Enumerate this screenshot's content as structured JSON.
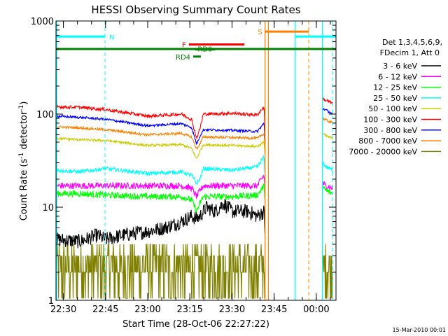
{
  "chart_data": {
    "type": "line",
    "title": "HESSI Observing Summary Count Rates",
    "xlabel": "Start Time (28-Oct-06 22:27:22)",
    "ylabel_main": "Count Rate (s",
    "ylabel_sup": "-1",
    "ylabel_mid": " detector",
    "ylabel_end": ")",
    "yscale": "log",
    "ylim": [
      1,
      1000
    ],
    "xlim": [
      22.4561,
      24.1167
    ],
    "y_ticks": [
      {
        "v": 1,
        "label": "1"
      },
      {
        "v": 10,
        "label": "10"
      },
      {
        "v": 100,
        "label": "100"
      },
      {
        "v": 1000,
        "label": "1000"
      }
    ],
    "x_ticks": [
      {
        "v": 22.5,
        "label": "22:30"
      },
      {
        "v": 22.75,
        "label": "22:45"
      },
      {
        "v": 23.0,
        "label": "23:00"
      },
      {
        "v": 23.25,
        "label": "23:15"
      },
      {
        "v": 23.5,
        "label": "23:30"
      },
      {
        "v": 23.75,
        "label": "23:45"
      },
      {
        "v": 24.0,
        "label": "00:00"
      }
    ],
    "legend": {
      "placement": "right",
      "header1": "Det 1,3,4,5,6,9,",
      "header2": "FDecim 1, Att 0",
      "entries": [
        {
          "label": "3 - 6 keV",
          "color": "#000000"
        },
        {
          "label": "6 - 12 keV",
          "color": "#ff00ff"
        },
        {
          "label": "12 - 25 keV",
          "color": "#00ff00"
        },
        {
          "label": "25 - 50 keV",
          "color": "#00ffff"
        },
        {
          "label": "50 - 100 keV",
          "color": "#cccc00"
        },
        {
          "label": "100 - 300 keV",
          "color": "#ff0000"
        },
        {
          "label": "300 - 800 keV",
          "color": "#0000ff"
        },
        {
          "label": "800 - 7000 keV",
          "color": "#ff8000"
        },
        {
          "label": "7000 - 20000 keV",
          "color": "#808000"
        }
      ]
    },
    "segments": [
      [
        22.4561,
        23.696
      ],
      [
        24.0375,
        24.096
      ]
    ],
    "series": [
      {
        "name": "100 - 300 keV",
        "color": "#ff0000",
        "noise": 0.04,
        "points": [
          [
            22.4561,
            120
          ],
          [
            22.6,
            118
          ],
          [
            22.75,
            112
          ],
          [
            23.0,
            95
          ],
          [
            23.2,
            100
          ],
          [
            23.26,
            88
          ],
          [
            23.29,
            55
          ],
          [
            23.31,
            70
          ],
          [
            23.33,
            100
          ],
          [
            23.5,
            102
          ],
          [
            23.65,
            98
          ],
          [
            23.69,
            120
          ],
          [
            23.696,
            60
          ],
          [
            24.0375,
            145
          ],
          [
            24.06,
            140
          ],
          [
            24.096,
            130
          ]
        ]
      },
      {
        "name": "300 - 800 keV",
        "color": "#0000ff",
        "noise": 0.03,
        "points": [
          [
            22.4561,
            95
          ],
          [
            22.6,
            92
          ],
          [
            22.75,
            88
          ],
          [
            23.0,
            75
          ],
          [
            23.2,
            79
          ],
          [
            23.26,
            72
          ],
          [
            23.29,
            48
          ],
          [
            23.31,
            58
          ],
          [
            23.33,
            68
          ],
          [
            23.5,
            67
          ],
          [
            23.65,
            65
          ],
          [
            23.69,
            80
          ],
          [
            23.696,
            50
          ],
          [
            24.0375,
            115
          ],
          [
            24.06,
            110
          ],
          [
            24.096,
            100
          ]
        ]
      },
      {
        "name": "800 - 7000 keV",
        "color": "#ff8000",
        "noise": 0.03,
        "points": [
          [
            22.4561,
            73
          ],
          [
            22.6,
            71
          ],
          [
            22.75,
            68
          ],
          [
            23.0,
            60
          ],
          [
            23.2,
            62
          ],
          [
            23.26,
            57
          ],
          [
            23.29,
            42
          ],
          [
            23.31,
            48
          ],
          [
            23.33,
            57
          ],
          [
            23.5,
            56
          ],
          [
            23.65,
            55
          ],
          [
            23.69,
            62
          ],
          [
            23.696,
            40
          ],
          [
            24.0375,
            90
          ],
          [
            24.06,
            86
          ],
          [
            24.096,
            80
          ]
        ]
      },
      {
        "name": "50 - 100 keV",
        "color": "#cccc00",
        "noise": 0.03,
        "points": [
          [
            22.4561,
            55
          ],
          [
            22.6,
            53
          ],
          [
            22.75,
            52
          ],
          [
            23.0,
            46
          ],
          [
            23.2,
            47
          ],
          [
            23.26,
            43
          ],
          [
            23.29,
            33
          ],
          [
            23.31,
            40
          ],
          [
            23.33,
            47
          ],
          [
            23.5,
            46
          ],
          [
            23.65,
            45
          ],
          [
            23.69,
            50
          ],
          [
            23.696,
            35
          ],
          [
            24.0375,
            62
          ],
          [
            24.06,
            58
          ],
          [
            24.096,
            55
          ]
        ]
      },
      {
        "name": "25 - 50 keV",
        "color": "#00ffff",
        "noise": 0.05,
        "points": [
          [
            22.4561,
            25
          ],
          [
            22.6,
            24
          ],
          [
            22.75,
            26
          ],
          [
            23.0,
            23
          ],
          [
            23.2,
            24
          ],
          [
            23.26,
            22
          ],
          [
            23.29,
            18
          ],
          [
            23.31,
            20
          ],
          [
            23.33,
            26
          ],
          [
            23.5,
            25
          ],
          [
            23.65,
            27
          ],
          [
            23.69,
            35
          ],
          [
            23.696,
            20
          ],
          [
            24.0375,
            30
          ],
          [
            24.06,
            27
          ],
          [
            24.096,
            25
          ]
        ]
      },
      {
        "name": "6 - 12 keV",
        "color": "#ff00ff",
        "noise": 0.08,
        "points": [
          [
            22.4561,
            17
          ],
          [
            22.6,
            17
          ],
          [
            22.75,
            17
          ],
          [
            23.0,
            17
          ],
          [
            23.2,
            17
          ],
          [
            23.26,
            16
          ],
          [
            23.29,
            13
          ],
          [
            23.31,
            15
          ],
          [
            23.33,
            17
          ],
          [
            23.5,
            17
          ],
          [
            23.65,
            17
          ],
          [
            23.69,
            22
          ],
          [
            23.696,
            15
          ],
          [
            24.0375,
            18
          ],
          [
            24.06,
            17
          ],
          [
            24.096,
            16
          ]
        ]
      },
      {
        "name": "12 - 25 keV",
        "color": "#00ff00",
        "noise": 0.08,
        "points": [
          [
            22.4561,
            14
          ],
          [
            22.6,
            14
          ],
          [
            22.75,
            13.5
          ],
          [
            23.0,
            13
          ],
          [
            23.2,
            13
          ],
          [
            23.26,
            12
          ],
          [
            23.29,
            9
          ],
          [
            23.31,
            11
          ],
          [
            23.33,
            13
          ],
          [
            23.5,
            13
          ],
          [
            23.65,
            13.5
          ],
          [
            23.69,
            17
          ],
          [
            23.696,
            12
          ],
          [
            24.0375,
            16
          ],
          [
            24.06,
            15
          ],
          [
            24.096,
            14
          ]
        ]
      },
      {
        "name": "3 - 6 keV",
        "color": "#000000",
        "noise": 0.18,
        "points": [
          [
            22.4561,
            4.5
          ],
          [
            22.6,
            4.3
          ],
          [
            22.7,
            5
          ],
          [
            22.75,
            4.5
          ],
          [
            22.85,
            5
          ],
          [
            23.0,
            5.5
          ],
          [
            23.1,
            6
          ],
          [
            23.2,
            7
          ],
          [
            23.26,
            8
          ],
          [
            23.29,
            7.5
          ],
          [
            23.31,
            8
          ],
          [
            23.35,
            10
          ],
          [
            23.4,
            9
          ],
          [
            23.45,
            11
          ],
          [
            23.5,
            9
          ],
          [
            23.55,
            9
          ],
          [
            23.6,
            9
          ],
          [
            23.65,
            8
          ],
          [
            23.69,
            9
          ],
          [
            23.696,
            5
          ]
        ]
      },
      {
        "name": "7000 - 20000 keV",
        "color": "#808000",
        "noise": 0.35,
        "points": [
          [
            22.4561,
            2.8
          ],
          [
            22.6,
            2.8
          ],
          [
            22.75,
            3
          ],
          [
            22.9,
            2.6
          ],
          [
            23.0,
            2.7
          ],
          [
            23.2,
            3
          ],
          [
            23.4,
            2.9
          ],
          [
            23.6,
            3
          ],
          [
            23.696,
            3
          ],
          [
            24.0375,
            3
          ],
          [
            24.096,
            2.8
          ]
        ]
      }
    ],
    "flag_bars": [
      {
        "label": "N",
        "color": "#00ffff",
        "y": 680,
        "start": 22.4561,
        "end": 22.747,
        "label_at": "end"
      },
      {
        "label": "N",
        "color": "#00ffff",
        "y": 680,
        "start": 23.875,
        "end": 24.1167,
        "label_at": "none"
      },
      {
        "label": "S",
        "color": "#ff8000",
        "y": 770,
        "start": 23.696,
        "end": 23.955,
        "label_at": "start"
      },
      {
        "label": "F",
        "color": "#ff0000",
        "y": 560,
        "start": 23.244,
        "end": 23.574,
        "label_at": "start"
      },
      {
        "label": "",
        "color": "#008000",
        "y": 500,
        "start": 22.4561,
        "end": 24.1167,
        "label_at": "none"
      },
      {
        "label": "RD0",
        "color": "#008000",
        "y": 495,
        "start": 23.28,
        "end": 23.4,
        "label_at": "mid"
      },
      {
        "label": "RD4",
        "color": "#008000",
        "y": 415,
        "start": 23.27,
        "end": 23.315,
        "label_at": "start"
      }
    ],
    "vlines": [
      {
        "x": 22.747,
        "color": "#00ffff",
        "dashed": true
      },
      {
        "x": 24.0963,
        "color": "#00ffff",
        "dashed": true
      },
      {
        "x": 23.955,
        "color": "#ff8000",
        "dashed": true
      },
      {
        "x": 23.696,
        "color": "#ff8000",
        "dashed": false
      },
      {
        "x": 23.716,
        "color": "#ff8000",
        "dashed": false
      },
      {
        "x": 23.875,
        "color": "#00ffff",
        "dashed": false
      },
      {
        "x": 22.46,
        "color": "#00ffff",
        "dashed": false
      },
      {
        "x": 24.036,
        "color": "#00ffff",
        "dashed": false
      }
    ]
  },
  "footer": {
    "date": "15-Mar-2010 00:01"
  }
}
